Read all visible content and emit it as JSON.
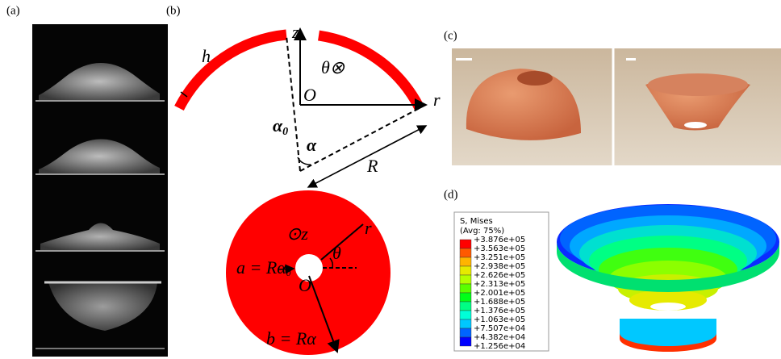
{
  "panel_labels": [
    "(a)",
    "(b)",
    "(c)",
    "(d)"
  ],
  "diagram": {
    "z": "z",
    "r": "r",
    "O": "O",
    "h": "h",
    "theta_in": "θ⊗",
    "alpha0": "α",
    "alpha0_sub": "0",
    "alpha": "α",
    "R": "R",
    "z_out": "⊙z",
    "r2": "r",
    "theta": "θ",
    "a_label": "a = Rα",
    "a_sub": "0",
    "O2": "O",
    "b_label": "b = Rα"
  },
  "legend": {
    "title": "S, Mises",
    "subtitle": "(Avg: 75%)",
    "entries": [
      "+3.876e+05",
      "+3.563e+05",
      "+3.251e+05",
      "+2.938e+05",
      "+2.626e+05",
      "+2.313e+05",
      "+2.001e+05",
      "+1.688e+05",
      "+1.376e+05",
      "+1.063e+05",
      "+7.507e+04",
      "+4.382e+04",
      "+1.256e+04"
    ],
    "band_colors": [
      "#ff0000",
      "#ff5a00",
      "#ffb400",
      "#e6ea00",
      "#b4ff00",
      "#5aff00",
      "#00ff18",
      "#00ff84",
      "#00ffd8",
      "#00c8ff",
      "#0064ff",
      "#0000ff"
    ]
  }
}
